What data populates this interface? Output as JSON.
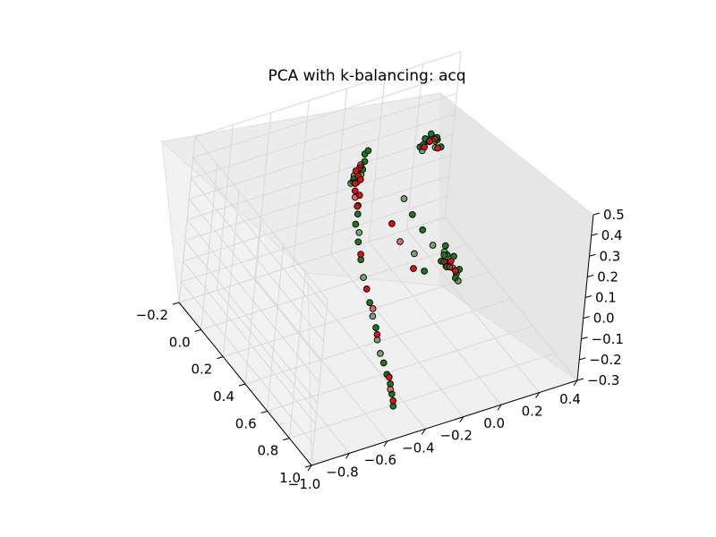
{
  "chart_data": {
    "type": "scatter",
    "title": "PCA with k-balancing: acq",
    "projection": "3d",
    "grid": true,
    "x_ticks": [
      "−1.0",
      "−0.8",
      "−0.6",
      "−0.4",
      "−0.2",
      "0.0",
      "0.2",
      "0.4"
    ],
    "y_ticks": [
      "−0.2",
      "0.0",
      "0.2",
      "0.4",
      "0.6",
      "0.8",
      "1.0"
    ],
    "z_ticks": [
      "−0.3",
      "−0.2",
      "−0.1",
      "0.0",
      "0.1",
      "0.2",
      "0.3",
      "0.4",
      "0.5"
    ],
    "colors": {
      "class_a": "#1a7a1a",
      "class_b": "#e01010"
    },
    "series": [
      {
        "color": "#1a7a1a",
        "points": [
          [
            -0.3,
            0.1,
            0.32
          ],
          [
            -0.29,
            0.11,
            0.35
          ],
          [
            -0.31,
            0.09,
            0.3
          ],
          [
            -0.28,
            0.12,
            0.38
          ],
          [
            -0.32,
            0.1,
            0.28
          ],
          [
            -0.3,
            0.13,
            0.33
          ],
          [
            -0.27,
            0.1,
            0.4
          ],
          [
            -0.29,
            0.08,
            0.27
          ],
          [
            -0.33,
            0.12,
            0.31
          ],
          [
            -0.26,
            0.11,
            0.42
          ],
          [
            -0.3,
            0.14,
            0.36
          ],
          [
            -0.31,
            0.07,
            0.25
          ],
          [
            -0.35,
            0.2,
            0.15
          ],
          [
            -0.36,
            0.25,
            0.1
          ],
          [
            -0.34,
            0.22,
            0.12
          ],
          [
            -0.37,
            0.3,
            0.05
          ],
          [
            -0.33,
            0.18,
            0.18
          ],
          [
            -0.38,
            0.35,
            0.0
          ],
          [
            -0.4,
            0.45,
            -0.05
          ],
          [
            -0.42,
            0.55,
            -0.1
          ],
          [
            -0.45,
            0.65,
            -0.15
          ],
          [
            -0.47,
            0.75,
            -0.18
          ],
          [
            -0.5,
            0.85,
            -0.2
          ],
          [
            -0.44,
            0.6,
            -0.12
          ],
          [
            -0.48,
            0.8,
            -0.19
          ],
          [
            -0.46,
            0.7,
            -0.16
          ],
          [
            -0.41,
            0.5,
            -0.08
          ],
          [
            -0.52,
            0.9,
            -0.22
          ],
          [
            0.05,
            0.1,
            0.38
          ],
          [
            0.07,
            0.12,
            0.4
          ],
          [
            0.08,
            0.09,
            0.35
          ],
          [
            0.06,
            0.13,
            0.42
          ],
          [
            0.1,
            0.11,
            0.36
          ],
          [
            0.04,
            0.08,
            0.33
          ],
          [
            0.09,
            0.14,
            0.39
          ],
          [
            0.11,
            0.1,
            0.32
          ],
          [
            0.03,
            0.12,
            0.37
          ],
          [
            0.12,
            0.13,
            0.34
          ],
          [
            0.06,
            0.07,
            0.3
          ],
          [
            0.08,
            0.15,
            0.41
          ],
          [
            0.1,
            0.3,
            -0.1
          ],
          [
            0.12,
            0.32,
            -0.12
          ],
          [
            0.11,
            0.28,
            -0.08
          ],
          [
            0.13,
            0.34,
            -0.14
          ],
          [
            0.09,
            0.31,
            -0.11
          ],
          [
            0.14,
            0.29,
            -0.09
          ],
          [
            0.12,
            0.35,
            -0.15
          ],
          [
            0.1,
            0.27,
            -0.07
          ],
          [
            0.15,
            0.33,
            -0.13
          ],
          [
            0.08,
            0.3,
            -0.06
          ],
          [
            0.13,
            0.36,
            -0.16
          ],
          [
            0.11,
            0.26,
            -0.05
          ],
          [
            -0.05,
            0.3,
            0.1
          ],
          [
            -0.02,
            0.35,
            0.05
          ],
          [
            0.0,
            0.4,
            0.0
          ],
          [
            -0.08,
            0.25,
            0.15
          ],
          [
            -0.1,
            0.2,
            0.2
          ],
          [
            0.02,
            0.42,
            -0.02
          ],
          [
            -0.12,
            0.45,
            0.02
          ],
          [
            -0.15,
            0.4,
            0.08
          ]
        ]
      },
      {
        "color": "#e01010",
        "points": [
          [
            -0.3,
            0.11,
            0.31
          ],
          [
            -0.29,
            0.1,
            0.34
          ],
          [
            -0.31,
            0.12,
            0.29
          ],
          [
            -0.3,
            0.09,
            0.26
          ],
          [
            -0.29,
            0.12,
            0.22
          ],
          [
            -0.3,
            0.1,
            0.2
          ],
          [
            -0.31,
            0.11,
            0.24
          ],
          [
            -0.28,
            0.1,
            0.28
          ],
          [
            -0.3,
            0.13,
            0.18
          ],
          [
            -0.29,
            0.11,
            0.16
          ],
          [
            -0.31,
            0.1,
            0.33
          ],
          [
            -0.3,
            0.12,
            0.37
          ],
          [
            -0.39,
            0.4,
            -0.02
          ],
          [
            -0.43,
            0.58,
            -0.11
          ],
          [
            -0.49,
            0.82,
            -0.2
          ],
          [
            -0.51,
            0.88,
            -0.21
          ],
          [
            -0.47,
            0.77,
            -0.18
          ],
          [
            -0.4,
            0.48,
            -0.06
          ],
          [
            -0.36,
            0.28,
            0.06
          ],
          [
            0.07,
            0.11,
            0.37
          ],
          [
            0.09,
            0.12,
            0.38
          ],
          [
            0.05,
            0.1,
            0.34
          ],
          [
            0.11,
            0.12,
            0.33
          ],
          [
            0.11,
            0.31,
            -0.12
          ],
          [
            0.13,
            0.33,
            -0.13
          ],
          [
            0.12,
            0.3,
            -0.1
          ],
          [
            -0.2,
            0.35,
            0.12
          ],
          [
            -0.22,
            0.3,
            0.18
          ],
          [
            -0.18,
            0.45,
            0.05
          ],
          [
            0.05,
            0.35,
            -0.05
          ]
        ]
      }
    ]
  }
}
